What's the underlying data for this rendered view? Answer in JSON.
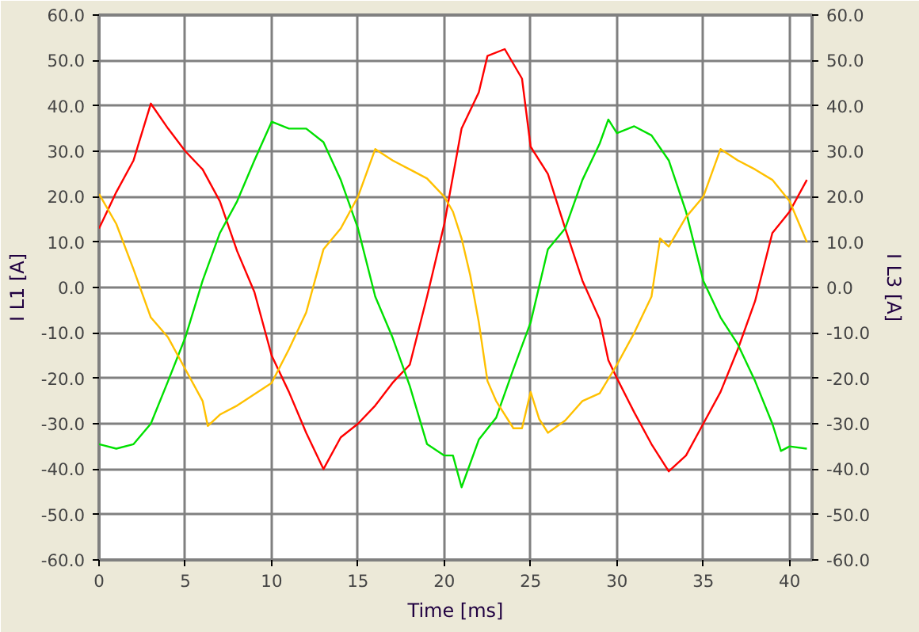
{
  "chart_data": {
    "type": "line",
    "xlabel": "Time [ms]",
    "ylabel": "I L1 [A]",
    "y2label": "I L3 [A]",
    "xlim": [
      0,
      41.3
    ],
    "xticks": [
      0,
      5,
      10,
      15,
      20,
      25,
      30,
      35,
      40
    ],
    "ylim": [
      -60,
      60
    ],
    "yticks": [
      {
        "value": -60,
        "label": "-60.0"
      },
      {
        "value": -50,
        "label": "-50.0"
      },
      {
        "value": -40,
        "label": "-40.0"
      },
      {
        "value": -30,
        "label": "-30.0"
      },
      {
        "value": -20,
        "label": "-20.0"
      },
      {
        "value": -10,
        "label": "-10.0"
      },
      {
        "value": 0,
        "label": "0.0"
      },
      {
        "value": 10,
        "label": "10.0"
      },
      {
        "value": 20,
        "label": "20.0"
      },
      {
        "value": 30,
        "label": "30.0"
      },
      {
        "value": 40,
        "label": "40.0"
      },
      {
        "value": 50,
        "label": "50.0"
      },
      {
        "value": 60,
        "label": "60.0"
      }
    ],
    "y2lim": [
      -60,
      60
    ],
    "y2ticks": [
      {
        "value": -60,
        "label": "-60.0"
      },
      {
        "value": -50,
        "label": "-50.0"
      },
      {
        "value": -40,
        "label": "-40.0"
      },
      {
        "value": -30,
        "label": "-30.0"
      },
      {
        "value": -20,
        "label": "-20.0"
      },
      {
        "value": -10,
        "label": "-10.0"
      },
      {
        "value": 0,
        "label": "0.0"
      },
      {
        "value": 10,
        "label": "10.0"
      },
      {
        "value": 20,
        "label": "20.0"
      },
      {
        "value": 30,
        "label": "30.0"
      },
      {
        "value": 40,
        "label": "40.0"
      },
      {
        "value": 50,
        "label": "50.0"
      },
      {
        "value": 60,
        "label": "60.0"
      }
    ],
    "grid": true,
    "marker": "none",
    "line_style": "solid",
    "series": [
      {
        "color": "#ff0000",
        "x": [
          0,
          1,
          2,
          3,
          4,
          5,
          6,
          7,
          8,
          9,
          10,
          11,
          12,
          13,
          14,
          15,
          16,
          17,
          18,
          19,
          20,
          21,
          22,
          22.5,
          23.5,
          24.5,
          25,
          26,
          27,
          28,
          29,
          29.5,
          30,
          31,
          32,
          33,
          34,
          35,
          36,
          37,
          38,
          39,
          40,
          41
        ],
        "values": [
          13,
          21,
          28,
          40.5,
          35,
          30,
          26,
          19,
          8,
          -1,
          -15,
          -23,
          -32,
          -40,
          -33,
          -30,
          -26,
          -21,
          -17,
          -2,
          14,
          35,
          43,
          51,
          52.5,
          46,
          31,
          25,
          13,
          1.5,
          -7,
          -16,
          -20,
          -27.5,
          -34.5,
          -40.5,
          -37,
          -30,
          -23,
          -13.6,
          -3,
          12,
          16.7,
          23.7
        ]
      },
      {
        "color": "#00e000",
        "x": [
          0,
          1,
          2,
          3,
          4,
          5,
          6,
          7,
          8,
          9,
          10,
          11,
          12,
          13,
          14,
          15,
          16,
          17,
          18,
          19,
          20,
          20.5,
          21,
          22,
          23,
          24,
          25,
          26,
          27,
          28,
          29,
          29.5,
          30,
          31,
          32,
          33,
          34,
          35,
          36,
          37,
          38,
          39,
          39.5,
          40,
          41
        ],
        "values": [
          -34.5,
          -35.5,
          -34.5,
          -30,
          -20.6,
          -11,
          1.5,
          12,
          19,
          28,
          36.5,
          35,
          35,
          32,
          23.7,
          13,
          -2,
          -11,
          -21.7,
          -34.5,
          -37,
          -37,
          -44,
          -33.5,
          -28.7,
          -18,
          -7.7,
          8.4,
          13,
          23.7,
          31.7,
          37,
          34,
          35.5,
          33.5,
          28,
          16.7,
          1.5,
          -6.6,
          -12.5,
          -20.6,
          -30,
          -36,
          -35,
          -35.5
        ]
      },
      {
        "color": "#ffc000",
        "x": [
          0,
          1,
          2,
          3,
          4,
          5,
          6,
          6.3,
          7,
          8,
          9,
          10,
          11,
          12,
          13,
          14,
          15,
          16,
          17,
          18,
          19,
          20,
          20.5,
          21,
          21.5,
          22,
          22.5,
          23,
          24,
          24.5,
          25,
          25.5,
          26,
          27,
          28,
          29,
          30,
          31,
          32,
          32.5,
          33,
          34,
          35,
          36,
          37,
          38,
          39,
          40,
          41
        ],
        "values": [
          20.6,
          14,
          4,
          -6.6,
          -11,
          -18,
          -25,
          -30.5,
          -28,
          -26,
          -23.5,
          -21,
          -13.6,
          -5.5,
          8.4,
          13,
          20,
          30.5,
          28,
          26,
          24,
          20,
          16.7,
          10.8,
          2.7,
          -7.7,
          -20.6,
          -25,
          -31,
          -31,
          -23,
          -29,
          -32,
          -29.3,
          -25,
          -23.3,
          -17,
          -10,
          -2,
          10.8,
          9,
          15.5,
          20,
          30.5,
          28,
          26,
          23.7,
          19,
          10
        ]
      }
    ]
  }
}
